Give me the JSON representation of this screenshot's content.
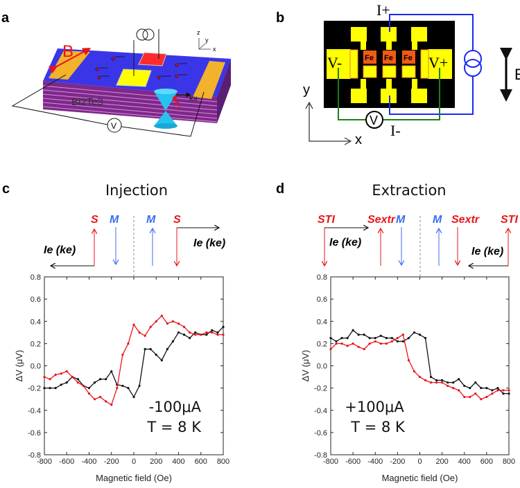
{
  "panel_a": {
    "label": "a",
    "field_label": "B",
    "material": "Bi2Te3",
    "spin_label": "S",
    "k_label": "kx",
    "axis_z": "z",
    "axis_y": "y",
    "axis_x": "x",
    "voltmeter": "V"
  },
  "panel_b": {
    "label": "b",
    "i_plus": "I+",
    "i_minus": "I-",
    "v_minus": "V-",
    "v_plus": "V+",
    "fe": [
      "Fe",
      "Fe",
      "Fe"
    ],
    "e_label": "E",
    "axis_y": "y",
    "axis_x": "x",
    "voltmeter": "V"
  },
  "panel_c": {
    "label": "c",
    "title": "Injection",
    "s": "S",
    "m": "M",
    "current": "Ie (ke)"
  },
  "panel_d": {
    "label": "d",
    "title": "Extraction",
    "s_ti": "STI",
    "s_extr": "Sextr",
    "m": "M",
    "current": "Ie (ke)"
  },
  "colors": {
    "red": "#e8141b",
    "black": "#111111",
    "blue": "#3b6df5",
    "green": "#1e7d1e"
  },
  "chart_data": [
    {
      "type": "line",
      "panel": "c",
      "xlabel": "Magnetic field (Oe)",
      "ylabel": "ΔV (μV)",
      "xlim": [
        -800,
        800
      ],
      "ylim": [
        -0.8,
        0.8
      ],
      "x_ticks": [
        "-800",
        "-600",
        "-400",
        "-200",
        "0",
        "200",
        "400",
        "600",
        "800"
      ],
      "y_ticks": [
        "0.8",
        "0.6",
        "0.4",
        "0.2",
        "0.0",
        "-0.2",
        "-0.4",
        "-0.6",
        "-0.8"
      ],
      "annotation": [
        "-100μA",
        "T = 8 K"
      ],
      "x": [
        -800,
        -750,
        -700,
        -650,
        -600,
        -550,
        -500,
        -450,
        -400,
        -350,
        -300,
        -250,
        -200,
        -150,
        -100,
        -50,
        0,
        50,
        100,
        150,
        200,
        250,
        300,
        350,
        400,
        450,
        500,
        550,
        600,
        650,
        700,
        750,
        800
      ],
      "series": [
        {
          "name": "black",
          "color": "#111111",
          "values": [
            -0.2,
            -0.2,
            -0.2,
            -0.17,
            -0.15,
            -0.1,
            -0.12,
            -0.18,
            -0.2,
            -0.15,
            -0.12,
            -0.12,
            -0.05,
            -0.17,
            -0.18,
            -0.2,
            -0.28,
            -0.18,
            0.15,
            0.15,
            0.1,
            0.05,
            0.15,
            0.22,
            0.3,
            0.28,
            0.25,
            0.3,
            0.28,
            0.28,
            0.32,
            0.3,
            0.35
          ]
        },
        {
          "name": "red",
          "color": "#e8141b",
          "values": [
            -0.1,
            -0.12,
            -0.08,
            -0.07,
            -0.05,
            -0.1,
            -0.15,
            -0.18,
            -0.25,
            -0.3,
            -0.28,
            -0.32,
            -0.35,
            -0.2,
            0.1,
            0.2,
            0.37,
            0.3,
            0.27,
            0.35,
            0.4,
            0.45,
            0.38,
            0.4,
            0.38,
            0.35,
            0.3,
            0.28,
            0.28,
            0.3,
            0.3,
            0.28,
            0.28
          ]
        }
      ]
    },
    {
      "type": "line",
      "panel": "d",
      "xlabel": "Magnetic field (Oe)",
      "ylabel": "ΔV (μV)",
      "xlim": [
        -800,
        800
      ],
      "ylim": [
        -0.8,
        0.8
      ],
      "x_ticks": [
        "-800",
        "-600",
        "-400",
        "-200",
        "0",
        "200",
        "400",
        "600",
        "800"
      ],
      "y_ticks": [
        "0.8",
        "0.6",
        "0.4",
        "0.2",
        "0.0",
        "-0.2",
        "-0.4",
        "-0.6",
        "-0.8"
      ],
      "annotation": [
        "+100μA",
        "T = 8 K"
      ],
      "x": [
        -800,
        -750,
        -700,
        -650,
        -600,
        -550,
        -500,
        -450,
        -400,
        -350,
        -300,
        -250,
        -200,
        -150,
        -100,
        -50,
        0,
        50,
        100,
        150,
        200,
        250,
        300,
        350,
        400,
        450,
        500,
        550,
        600,
        650,
        700,
        750,
        800
      ],
      "series": [
        {
          "name": "black",
          "color": "#111111",
          "values": [
            0.25,
            0.22,
            0.25,
            0.25,
            0.32,
            0.28,
            0.28,
            0.25,
            0.25,
            0.27,
            0.25,
            0.25,
            0.22,
            0.22,
            0.25,
            0.3,
            0.28,
            0.25,
            -0.1,
            -0.13,
            -0.13,
            -0.15,
            -0.15,
            -0.12,
            -0.18,
            -0.2,
            -0.15,
            -0.2,
            -0.2,
            -0.22,
            -0.2,
            -0.25,
            -0.25
          ]
        },
        {
          "name": "red",
          "color": "#e8141b",
          "values": [
            0.15,
            0.2,
            0.2,
            0.18,
            0.2,
            0.17,
            0.15,
            0.2,
            0.22,
            0.2,
            0.2,
            0.22,
            0.25,
            0.28,
            0.05,
            -0.05,
            -0.1,
            -0.13,
            -0.15,
            -0.15,
            -0.15,
            -0.18,
            -0.2,
            -0.22,
            -0.28,
            -0.28,
            -0.25,
            -0.3,
            -0.28,
            -0.25,
            -0.22,
            -0.22,
            -0.22
          ]
        }
      ]
    }
  ]
}
